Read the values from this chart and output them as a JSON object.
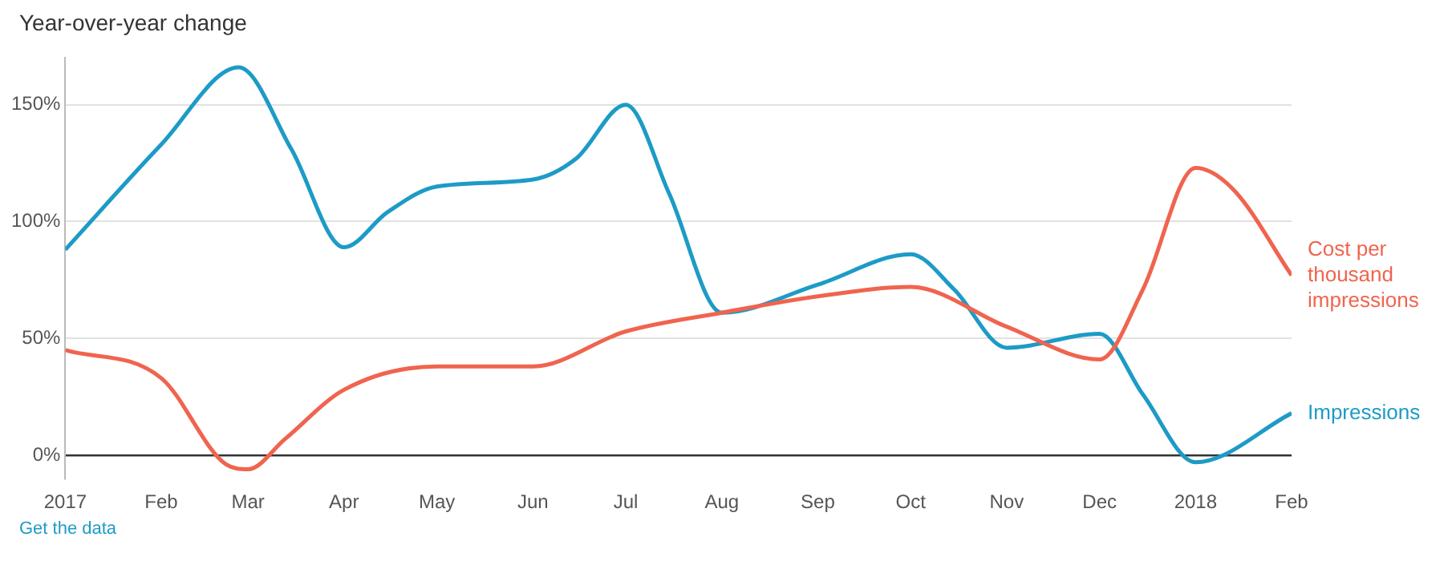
{
  "chart_data": {
    "type": "line",
    "title": "Year-over-year change",
    "annotations": [
      "Get the data"
    ],
    "xlim": [
      "2017-01-01",
      "2018-02-01"
    ],
    "xticks": [
      {
        "value": "2017-01-01",
        "label": "2017"
      },
      {
        "value": "2017-02-01",
        "label": "Feb"
      },
      {
        "value": "2017-03-01",
        "label": "Mar"
      },
      {
        "value": "2017-04-01",
        "label": "Apr"
      },
      {
        "value": "2017-05-01",
        "label": "May"
      },
      {
        "value": "2017-06-01",
        "label": "Jun"
      },
      {
        "value": "2017-07-01",
        "label": "Jul"
      },
      {
        "value": "2017-08-01",
        "label": "Aug"
      },
      {
        "value": "2017-09-01",
        "label": "Sep"
      },
      {
        "value": "2017-10-01",
        "label": "Oct"
      },
      {
        "value": "2017-11-01",
        "label": "Nov"
      },
      {
        "value": "2017-12-01",
        "label": "Dec"
      },
      {
        "value": "2018-01-01",
        "label": "2018"
      },
      {
        "value": "2018-02-01",
        "label": "Feb"
      }
    ],
    "ylim": [
      -10,
      170
    ],
    "yticks": [
      {
        "value": 0,
        "label": "0%"
      },
      {
        "value": 50,
        "label": "50%"
      },
      {
        "value": 100,
        "label": "100%"
      },
      {
        "value": 150,
        "label": "150%"
      }
    ],
    "grid": "y",
    "legend": false,
    "marker": "none",
    "line_style": "solid",
    "series": [
      {
        "name": "Cost per thousand impressions",
        "color": "#f0644f",
        "x": [
          "2017-01-01",
          "2017-02-01",
          "2017-02-22",
          "2017-03-01",
          "2017-03-13",
          "2017-04-01",
          "2017-05-01",
          "2017-06-01",
          "2017-07-01",
          "2017-08-01",
          "2017-09-01",
          "2017-10-01",
          "2017-11-01",
          "2017-12-01",
          "2017-12-15",
          "2018-01-01",
          "2018-01-13",
          "2018-02-01"
        ],
        "values": [
          45,
          33,
          -4,
          -6,
          7,
          28,
          38,
          38,
          53,
          61,
          68,
          72,
          55,
          41,
          71,
          123,
          114,
          77
        ]
      },
      {
        "name": "Impressions",
        "color": "#1d9bc6",
        "x": [
          "2017-01-01",
          "2017-02-01",
          "2017-02-26",
          "2017-03-15",
          "2017-04-01",
          "2017-04-15",
          "2017-05-01",
          "2017-06-01",
          "2017-06-15",
          "2017-07-01",
          "2017-07-15",
          "2017-08-01",
          "2017-09-01",
          "2017-10-01",
          "2017-10-15",
          "2017-11-01",
          "2017-12-01",
          "2017-12-15",
          "2018-01-01",
          "2018-02-01"
        ],
        "values": [
          88,
          133,
          166,
          131,
          89,
          104,
          115,
          118,
          127,
          150,
          112,
          61,
          73,
          86,
          71,
          46,
          52,
          26,
          -3,
          18
        ]
      }
    ]
  }
}
